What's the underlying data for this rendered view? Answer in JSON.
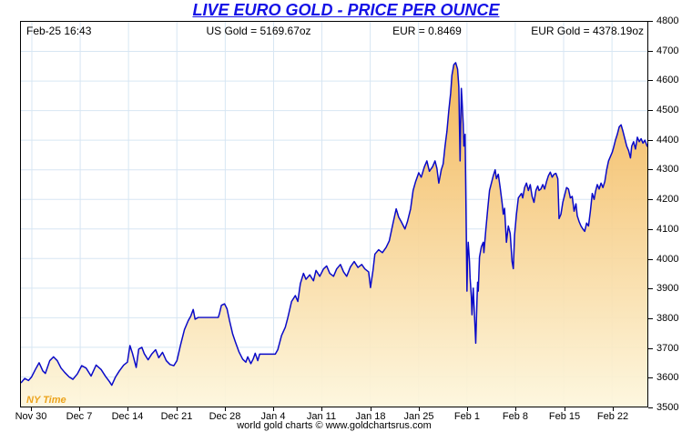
{
  "title": "LIVE EURO GOLD - PRICE PER OUNCE",
  "header": {
    "timestamp": "Feb-25  16:43",
    "us_gold": "US Gold = 5169.67oz",
    "eur_rate": "EUR = 0.8469",
    "eur_gold": "EUR Gold = 4378.19oz"
  },
  "ny_time_label": "NY Time",
  "footer": "world gold charts © www.goldchartsrus.com",
  "colors": {
    "title_blue": "#1512e6",
    "line_blue": "#0a0ac8",
    "grid_blue": "#d7e6f3",
    "fill_top": "#f2b24e",
    "fill_bottom": "#fdf6dc",
    "ny_time_orange": "#eca31c",
    "axis_black": "#000000"
  },
  "chart_data": {
    "type": "area",
    "title": "LIVE EURO GOLD - PRICE PER OUNCE",
    "series_name": "EUR Gold price per ounce",
    "ylim": [
      3500,
      4800
    ],
    "y_ticks": [
      3500,
      3600,
      3700,
      3800,
      3900,
      4000,
      4100,
      4200,
      4300,
      4400,
      4500,
      4600,
      4700,
      4800
    ],
    "x_tick_labels": [
      "Nov 30",
      "Dec 7",
      "Dec 14",
      "Dec 21",
      "Dec 28",
      "Jan 4",
      "Jan 11",
      "Jan 18",
      "Jan 25",
      "Feb 1",
      "Feb 8",
      "Feb 15",
      "Feb 22"
    ],
    "x_tick_positions_pct": [
      1.74,
      9.46,
      17.17,
      24.89,
      32.61,
      40.33,
      48.04,
      55.76,
      63.48,
      71.2,
      78.91,
      86.63,
      94.35
    ],
    "grid": true,
    "legend": "none",
    "last_value": 4378.19,
    "points": [
      [
        0,
        3580
      ],
      [
        0.6,
        3595
      ],
      [
        1.2,
        3588
      ],
      [
        1.7,
        3600
      ],
      [
        2.3,
        3625
      ],
      [
        2.9,
        3648
      ],
      [
        3.5,
        3620
      ],
      [
        3.9,
        3612
      ],
      [
        4.6,
        3655
      ],
      [
        5.2,
        3668
      ],
      [
        5.8,
        3655
      ],
      [
        6.4,
        3630
      ],
      [
        7.0,
        3615
      ],
      [
        7.7,
        3600
      ],
      [
        8.3,
        3592
      ],
      [
        9.0,
        3610
      ],
      [
        9.7,
        3638
      ],
      [
        10.4,
        3630
      ],
      [
        11.2,
        3603
      ],
      [
        12.0,
        3640
      ],
      [
        12.8,
        3625
      ],
      [
        13.5,
        3602
      ],
      [
        14.1,
        3585
      ],
      [
        14.5,
        3572
      ],
      [
        15.1,
        3600
      ],
      [
        15.7,
        3620
      ],
      [
        16.4,
        3640
      ],
      [
        17.0,
        3650
      ],
      [
        17.4,
        3706
      ],
      [
        17.8,
        3680
      ],
      [
        18.4,
        3632
      ],
      [
        18.8,
        3694
      ],
      [
        19.3,
        3700
      ],
      [
        19.7,
        3678
      ],
      [
        20.3,
        3658
      ],
      [
        20.9,
        3678
      ],
      [
        21.5,
        3692
      ],
      [
        22.0,
        3665
      ],
      [
        22.6,
        3683
      ],
      [
        23.2,
        3655
      ],
      [
        23.8,
        3642
      ],
      [
        24.4,
        3638
      ],
      [
        24.9,
        3655
      ],
      [
        25.5,
        3710
      ],
      [
        26.1,
        3760
      ],
      [
        26.7,
        3790
      ],
      [
        27.1,
        3805
      ],
      [
        27.5,
        3828
      ],
      [
        27.8,
        3795
      ],
      [
        28.3,
        3801
      ],
      [
        31.5,
        3801
      ],
      [
        31.7,
        3815
      ],
      [
        32.0,
        3842
      ],
      [
        32.5,
        3847
      ],
      [
        32.9,
        3830
      ],
      [
        33.3,
        3790
      ],
      [
        33.8,
        3745
      ],
      [
        34.2,
        3720
      ],
      [
        34.8,
        3685
      ],
      [
        35.4,
        3660
      ],
      [
        35.9,
        3650
      ],
      [
        36.2,
        3668
      ],
      [
        36.7,
        3645
      ],
      [
        37.1,
        3662
      ],
      [
        37.4,
        3680
      ],
      [
        37.8,
        3655
      ],
      [
        38.1,
        3677
      ],
      [
        40.6,
        3677
      ],
      [
        41.0,
        3692
      ],
      [
        41.6,
        3740
      ],
      [
        42.2,
        3768
      ],
      [
        42.6,
        3800
      ],
      [
        43.2,
        3855
      ],
      [
        43.8,
        3875
      ],
      [
        44.2,
        3855
      ],
      [
        44.6,
        3915
      ],
      [
        45.1,
        3950
      ],
      [
        45.5,
        3930
      ],
      [
        46.1,
        3945
      ],
      [
        46.7,
        3925
      ],
      [
        47.1,
        3960
      ],
      [
        47.7,
        3940
      ],
      [
        48.3,
        3965
      ],
      [
        48.8,
        3975
      ],
      [
        49.3,
        3950
      ],
      [
        49.9,
        3940
      ],
      [
        50.4,
        3965
      ],
      [
        51.0,
        3980
      ],
      [
        51.5,
        3955
      ],
      [
        52.0,
        3940
      ],
      [
        52.6,
        3972
      ],
      [
        53.2,
        3990
      ],
      [
        53.8,
        3970
      ],
      [
        54.4,
        3980
      ],
      [
        54.9,
        3965
      ],
      [
        55.5,
        3955
      ],
      [
        55.8,
        3902
      ],
      [
        56.2,
        3960
      ],
      [
        56.5,
        4015
      ],
      [
        57.1,
        4030
      ],
      [
        57.7,
        4020
      ],
      [
        58.3,
        4038
      ],
      [
        58.8,
        4060
      ],
      [
        59.4,
        4120
      ],
      [
        59.9,
        4168
      ],
      [
        60.3,
        4140
      ],
      [
        60.7,
        4125
      ],
      [
        61.3,
        4100
      ],
      [
        61.7,
        4125
      ],
      [
        62.2,
        4168
      ],
      [
        62.6,
        4230
      ],
      [
        63.0,
        4260
      ],
      [
        63.5,
        4290
      ],
      [
        63.9,
        4275
      ],
      [
        64.4,
        4310
      ],
      [
        64.8,
        4330
      ],
      [
        65.2,
        4295
      ],
      [
        65.7,
        4310
      ],
      [
        66.1,
        4330
      ],
      [
        66.4,
        4305
      ],
      [
        66.7,
        4255
      ],
      [
        67.1,
        4300
      ],
      [
        67.4,
        4320
      ],
      [
        67.7,
        4380
      ],
      [
        68.0,
        4430
      ],
      [
        68.3,
        4500
      ],
      [
        68.6,
        4560
      ],
      [
        68.8,
        4620
      ],
      [
        69.1,
        4655
      ],
      [
        69.4,
        4662
      ],
      [
        69.7,
        4640
      ],
      [
        69.9,
        4580
      ],
      [
        70.0,
        4450
      ],
      [
        70.1,
        4330
      ],
      [
        70.3,
        4575
      ],
      [
        70.4,
        4540
      ],
      [
        70.6,
        4455
      ],
      [
        70.7,
        4380
      ],
      [
        70.9,
        4420
      ],
      [
        71.0,
        4250
      ],
      [
        71.2,
        3890
      ],
      [
        71.3,
        4010
      ],
      [
        71.4,
        4055
      ],
      [
        71.6,
        3990
      ],
      [
        71.7,
        3935
      ],
      [
        71.9,
        3870
      ],
      [
        72.0,
        3810
      ],
      [
        72.2,
        3900
      ],
      [
        72.3,
        3855
      ],
      [
        72.6,
        3714
      ],
      [
        72.8,
        3860
      ],
      [
        72.9,
        3920
      ],
      [
        73.0,
        3890
      ],
      [
        73.2,
        4005
      ],
      [
        73.5,
        4040
      ],
      [
        73.8,
        4055
      ],
      [
        73.9,
        4020
      ],
      [
        74.2,
        4095
      ],
      [
        74.5,
        4165
      ],
      [
        74.8,
        4230
      ],
      [
        75.1,
        4255
      ],
      [
        75.4,
        4280
      ],
      [
        75.7,
        4300
      ],
      [
        75.9,
        4270
      ],
      [
        76.2,
        4285
      ],
      [
        76.5,
        4240
      ],
      [
        76.8,
        4190
      ],
      [
        77.0,
        4150
      ],
      [
        77.2,
        4170
      ],
      [
        77.5,
        4055
      ],
      [
        77.8,
        4110
      ],
      [
        78.1,
        4085
      ],
      [
        78.4,
        3990
      ],
      [
        78.6,
        3966
      ],
      [
        78.8,
        4080
      ],
      [
        79.1,
        4150
      ],
      [
        79.4,
        4205
      ],
      [
        79.9,
        4220
      ],
      [
        80.1,
        4205
      ],
      [
        80.4,
        4240
      ],
      [
        80.7,
        4255
      ],
      [
        81.0,
        4230
      ],
      [
        81.3,
        4250
      ],
      [
        81.6,
        4210
      ],
      [
        81.9,
        4190
      ],
      [
        82.2,
        4230
      ],
      [
        82.5,
        4245
      ],
      [
        82.7,
        4230
      ],
      [
        83.0,
        4235
      ],
      [
        83.3,
        4250
      ],
      [
        83.6,
        4235
      ],
      [
        83.9,
        4260
      ],
      [
        84.2,
        4280
      ],
      [
        84.5,
        4292
      ],
      [
        84.8,
        4275
      ],
      [
        85.1,
        4285
      ],
      [
        85.4,
        4288
      ],
      [
        85.7,
        4270
      ],
      [
        85.9,
        4135
      ],
      [
        86.2,
        4150
      ],
      [
        86.5,
        4190
      ],
      [
        86.8,
        4215
      ],
      [
        87.1,
        4240
      ],
      [
        87.4,
        4235
      ],
      [
        87.7,
        4205
      ],
      [
        88.0,
        4210
      ],
      [
        88.3,
        4160
      ],
      [
        88.6,
        4185
      ],
      [
        88.8,
        4145
      ],
      [
        89.1,
        4125
      ],
      [
        89.4,
        4110
      ],
      [
        89.7,
        4100
      ],
      [
        90.0,
        4092
      ],
      [
        90.3,
        4120
      ],
      [
        90.6,
        4110
      ],
      [
        90.9,
        4160
      ],
      [
        91.2,
        4220
      ],
      [
        91.5,
        4200
      ],
      [
        91.7,
        4225
      ],
      [
        92.0,
        4250
      ],
      [
        92.3,
        4235
      ],
      [
        92.6,
        4255
      ],
      [
        92.9,
        4240
      ],
      [
        93.2,
        4260
      ],
      [
        93.5,
        4300
      ],
      [
        93.8,
        4330
      ],
      [
        94.1,
        4345
      ],
      [
        94.4,
        4360
      ],
      [
        94.6,
        4375
      ],
      [
        94.9,
        4400
      ],
      [
        95.2,
        4420
      ],
      [
        95.5,
        4445
      ],
      [
        95.8,
        4452
      ],
      [
        96.1,
        4430
      ],
      [
        96.4,
        4405
      ],
      [
        96.7,
        4380
      ],
      [
        97.0,
        4365
      ],
      [
        97.3,
        4340
      ],
      [
        97.5,
        4380
      ],
      [
        97.8,
        4395
      ],
      [
        98.1,
        4370
      ],
      [
        98.4,
        4410
      ],
      [
        98.7,
        4395
      ],
      [
        99.0,
        4405
      ],
      [
        99.3,
        4390
      ],
      [
        99.6,
        4400
      ],
      [
        100,
        4378
      ]
    ]
  }
}
